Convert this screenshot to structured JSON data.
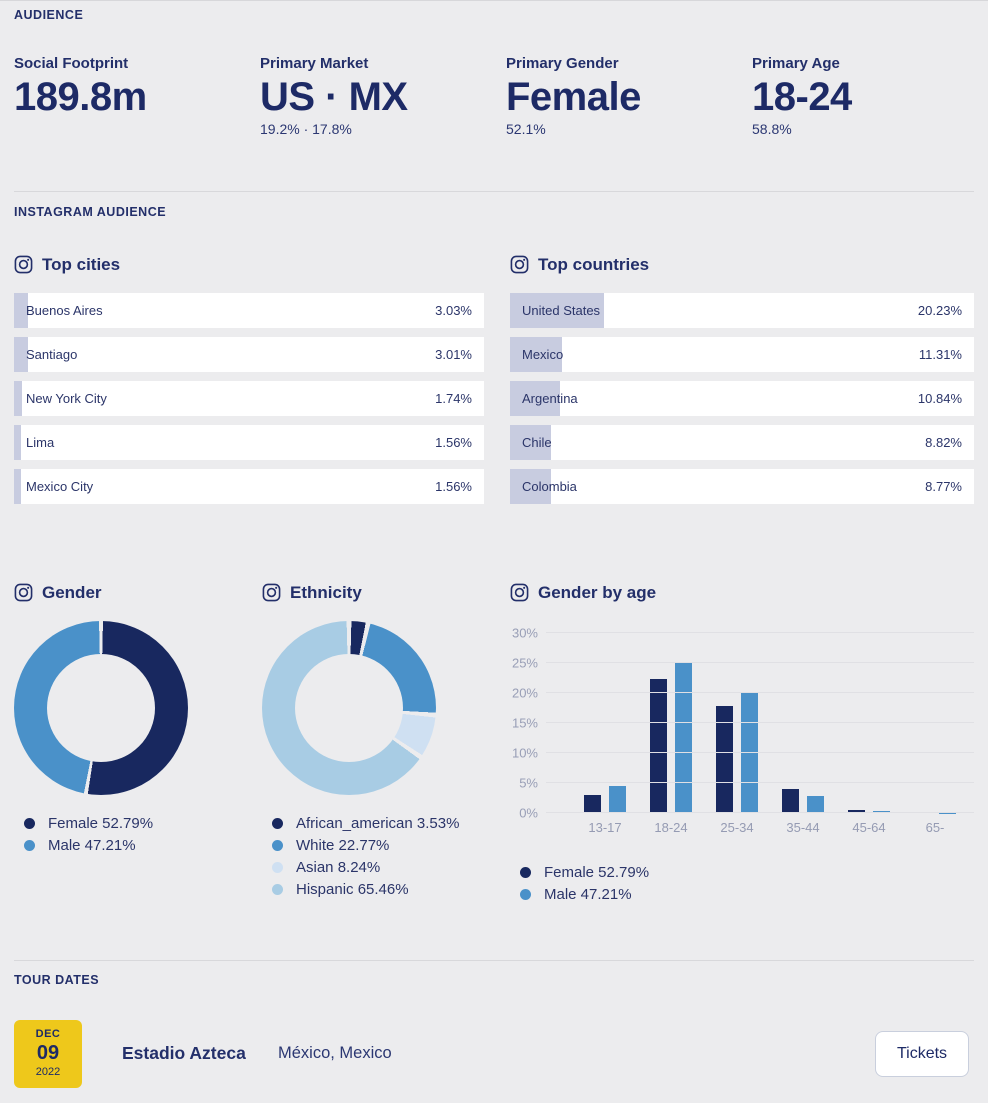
{
  "colors": {
    "background": "#ececee",
    "navy": "#18285f",
    "blue": "#4a91c9",
    "pale_blue": "#cfe0f2",
    "light_blue": "#a8cce4",
    "bar_fill": "#c8cce0",
    "yellow": "#eec81b",
    "white": "#ffffff"
  },
  "audience": {
    "title": "AUDIENCE",
    "stats": [
      {
        "label": "Social Footprint",
        "value": "189.8m",
        "sub": ""
      },
      {
        "label": "Primary Market",
        "value": "US · MX",
        "sub": "19.2% · 17.8%"
      },
      {
        "label": "Primary Gender",
        "value": "Female",
        "sub": "52.1%"
      },
      {
        "label": "Primary Age",
        "value": "18-24",
        "sub": "58.8%"
      }
    ]
  },
  "instagram": {
    "title": "INSTAGRAM AUDIENCE"
  },
  "chart_data": [
    {
      "id": "top_cities",
      "type": "bar",
      "orientation": "horizontal",
      "title": "Top cities",
      "categories": [
        "Buenos Aires",
        "Santiago",
        "New York City",
        "Lima",
        "Mexico City"
      ],
      "values": [
        3.03,
        3.01,
        1.74,
        1.56,
        1.56
      ],
      "value_labels": [
        "3.03%",
        "3.01%",
        "1.74%",
        "1.56%",
        "1.56%"
      ],
      "xlim": [
        0,
        100
      ],
      "unit": "%"
    },
    {
      "id": "top_countries",
      "type": "bar",
      "orientation": "horizontal",
      "title": "Top countries",
      "categories": [
        "United States",
        "Mexico",
        "Argentina",
        "Chile",
        "Colombia"
      ],
      "values": [
        20.23,
        11.31,
        10.84,
        8.82,
        8.77
      ],
      "value_labels": [
        "20.23%",
        "11.31%",
        "10.84%",
        "8.82%",
        "8.77%"
      ],
      "xlim": [
        0,
        100
      ],
      "unit": "%"
    },
    {
      "id": "gender",
      "type": "pie",
      "title": "Gender",
      "slices": [
        {
          "name": "Female",
          "pct": 52.79,
          "color": "#18285f",
          "legend_label": "Female 52.79%"
        },
        {
          "name": "Male",
          "pct": 47.21,
          "color": "#4a91c9",
          "legend_label": "Male 47.21%"
        }
      ],
      "legend_position": "bottom"
    },
    {
      "id": "ethnicity",
      "type": "pie",
      "title": "Ethnicity",
      "slices": [
        {
          "name": "African_american",
          "pct": 3.53,
          "color": "#18285f",
          "legend_label": "African_american 3.53%"
        },
        {
          "name": "White",
          "pct": 22.77,
          "color": "#4a91c9",
          "legend_label": "White 22.77%"
        },
        {
          "name": "Asian",
          "pct": 8.24,
          "color": "#cfe0f2",
          "legend_label": "Asian 8.24%"
        },
        {
          "name": "Hispanic",
          "pct": 65.46,
          "color": "#a8cce4",
          "legend_label": "Hispanic 65.46%"
        }
      ],
      "legend_position": "bottom"
    },
    {
      "id": "gender_by_age",
      "type": "bar",
      "title": "Gender by age",
      "categories": [
        "13-17",
        "18-24",
        "25-34",
        "35-44",
        "45-64",
        "65-"
      ],
      "series": [
        {
          "name": "Female",
          "legend_label": "Female 52.79%",
          "color": "#18285f",
          "values": [
            2.9,
            22.3,
            17.8,
            3.9,
            0.5,
            0.1
          ]
        },
        {
          "name": "Male",
          "legend_label": "Male 47.21%",
          "color": "#4a91c9",
          "values": [
            4.4,
            25.0,
            20.0,
            2.8,
            0.3,
            0.05
          ]
        }
      ],
      "ylim": [
        0,
        30
      ],
      "yticks": [
        {
          "value": 0,
          "label": "0%"
        },
        {
          "value": 5,
          "label": "5%"
        },
        {
          "value": 10,
          "label": "10%"
        },
        {
          "value": 15,
          "label": "15%"
        },
        {
          "value": 20,
          "label": "20%"
        },
        {
          "value": 25,
          "label": "25%"
        },
        {
          "value": 30,
          "label": "30%"
        }
      ],
      "grid": true,
      "legend_position": "bottom"
    }
  ],
  "tour": {
    "title": "TOUR DATES",
    "events": [
      {
        "month": "DEC",
        "day": "09",
        "year": "2022",
        "venue": "Estadio Azteca",
        "location": "México, Mexico",
        "button_label": "Tickets"
      }
    ]
  }
}
